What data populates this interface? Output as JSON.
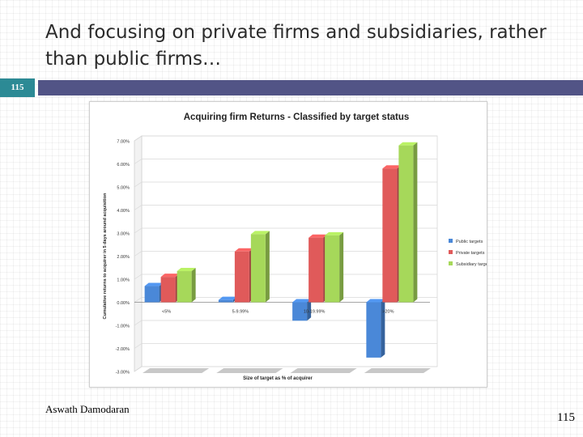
{
  "slide": {
    "title": "And focusing on private firms and subsidiaries, rather than public firms…",
    "number_badge": "115",
    "author": "Aswath Damodaran",
    "page_number": "115"
  },
  "colors": {
    "left_band": "#2c8a95",
    "right_band": "#525486"
  },
  "chart_data": {
    "type": "bar",
    "title": "Acquiring firm Returns - Classified by target status",
    "xlabel": "Size of target as % of acquirer",
    "ylabel": "Cumulative returns to acquirer in 5 days around acquisition",
    "categories": [
      "<5%",
      "5-9.99%",
      "10-19.99%",
      ">20%"
    ],
    "series": [
      {
        "name": "Public targets",
        "values": [
          0.7,
          0.1,
          -0.8,
          -2.4
        ],
        "color": "#4a88d8"
      },
      {
        "name": "Private targets",
        "values": [
          1.1,
          2.2,
          2.8,
          5.8
        ],
        "color": "#e05a5a"
      },
      {
        "name": "Subsidiary targets",
        "values": [
          1.35,
          2.95,
          2.9,
          6.8
        ],
        "color": "#a6d85a"
      }
    ],
    "ylim": [
      -3,
      7
    ],
    "yticks": [
      "-3.00%",
      "-2.00%",
      "-1.00%",
      "0.00%",
      "1.00%",
      "2.00%",
      "3.00%",
      "4.00%",
      "5.00%",
      "6.00%",
      "7.00%"
    ],
    "legend_position": "right",
    "grid": true,
    "3d": true
  }
}
